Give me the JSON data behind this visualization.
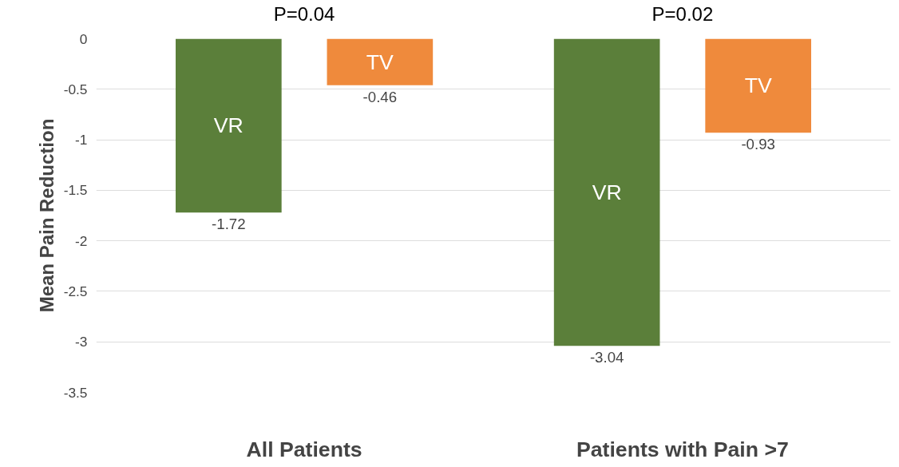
{
  "chart_data": {
    "type": "bar",
    "ylabel": "Mean Pain Reduction",
    "categories": [
      "All Patients",
      "Patients with Pain >7"
    ],
    "series": [
      {
        "name": "VR",
        "color": "#5b7f3a",
        "values": [
          -1.72,
          -3.04
        ]
      },
      {
        "name": "TV",
        "color": "#ef8a3c",
        "values": [
          -0.46,
          -0.93
        ]
      }
    ],
    "ylim": [
      -3.5,
      0
    ],
    "yticks": [
      0,
      -0.5,
      -1,
      -1.5,
      -2,
      -2.5,
      -3,
      -3.5
    ],
    "grid": "y",
    "data_labels": true,
    "annotations": [
      "P=0.04",
      "P=0.02"
    ]
  }
}
